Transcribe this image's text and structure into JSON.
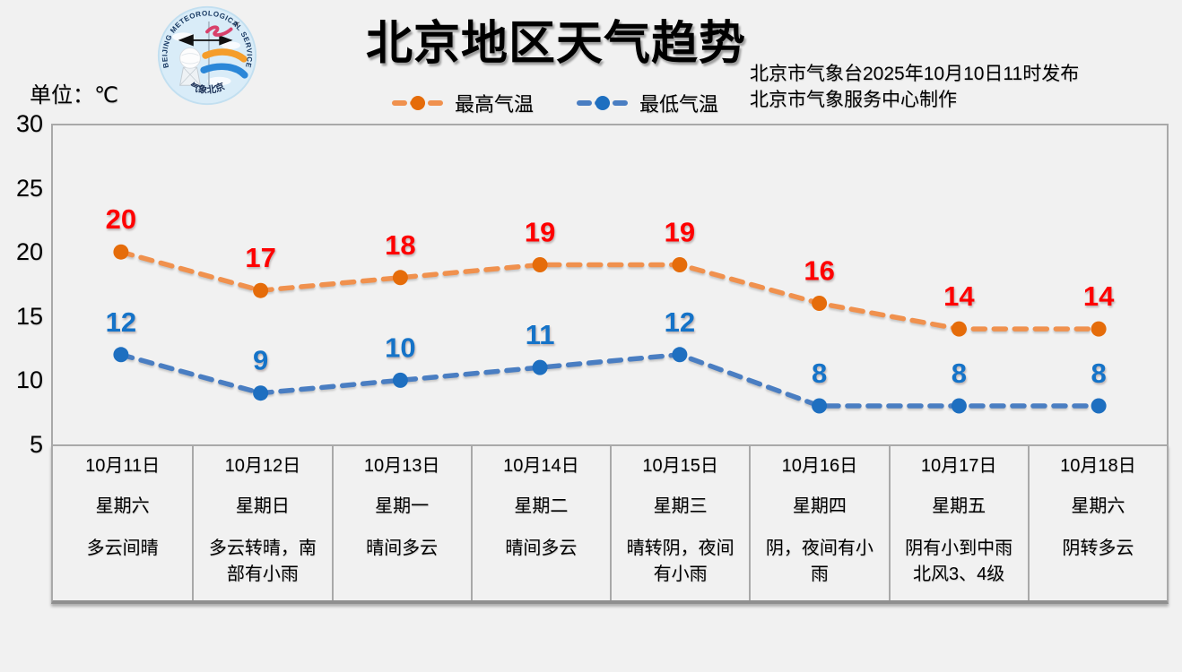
{
  "header": {
    "title": "北京地区天气趋势",
    "unit_label": "单位：℃",
    "issue_line1": "北京市气象台2025年10月10日11时发布",
    "issue_line2": "北京市气象服务中心制作",
    "logo": {
      "ring_text": "BEIJING METEOROLOGICAL SERVICE",
      "bottom_text": "气象北京"
    }
  },
  "chart_data": {
    "type": "line",
    "title": "北京地区天气趋势",
    "ylabel": "℃",
    "x": [
      "10月11日",
      "10月12日",
      "10月13日",
      "10月14日",
      "10月15日",
      "10月16日",
      "10月17日",
      "10月18日"
    ],
    "series": [
      {
        "name": "最高气温",
        "values": [
          20,
          17,
          18,
          19,
          19,
          16,
          14,
          14
        ],
        "line_color": "#f0914e",
        "marker_color": "#e56c0a",
        "label_color": "#ff0000"
      },
      {
        "name": "最低气温",
        "values": [
          12,
          9,
          10,
          11,
          12,
          8,
          8,
          8
        ],
        "line_color": "#4a7ec2",
        "marker_color": "#1e6fc0",
        "label_color": "#1573c8"
      }
    ],
    "ylim": [
      5,
      30
    ],
    "yticks": [
      30,
      25,
      20,
      15,
      10,
      5
    ],
    "grid": false,
    "legend_position": "top",
    "line_style": "dashed"
  },
  "table": {
    "columns": [
      {
        "date": "10月11日",
        "weekday": "星期六",
        "weather": "多云间晴"
      },
      {
        "date": "10月12日",
        "weekday": "星期日",
        "weather": "多云转晴，南\n部有小雨"
      },
      {
        "date": "10月13日",
        "weekday": "星期一",
        "weather": "晴间多云"
      },
      {
        "date": "10月14日",
        "weekday": "星期二",
        "weather": "晴间多云"
      },
      {
        "date": "10月15日",
        "weekday": "星期三",
        "weather": "晴转阴，夜间\n有小雨"
      },
      {
        "date": "10月16日",
        "weekday": "星期四",
        "weather": "阴，夜间有小\n雨"
      },
      {
        "date": "10月17日",
        "weekday": "星期五",
        "weather": "阴有小到中雨\n北风3、4级"
      },
      {
        "date": "10月18日",
        "weekday": "星期六",
        "weather": "阴转多云"
      }
    ]
  },
  "colors": {
    "background": "#f1f1f1",
    "axis_border": "#a9a9a9",
    "max_value_label": "#ff0000",
    "min_value_label": "#1573c8",
    "max_line": "#f0914e",
    "min_line": "#4a7ec2"
  }
}
